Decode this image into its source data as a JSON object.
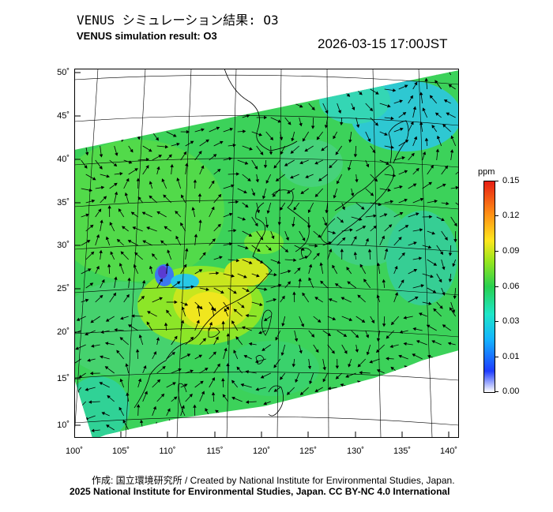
{
  "header": {
    "title_jp": "VENUS シミュレーション結果: O3",
    "title_en": "VENUS simulation result: O3",
    "timestamp": "2026-03-15 17:00JST"
  },
  "map": {
    "lat_labels": [
      "50˚",
      "45˚",
      "40˚",
      "35˚",
      "30˚",
      "25˚",
      "20˚",
      "15˚",
      "10˚"
    ],
    "lon_labels": [
      "100˚",
      "105˚",
      "110˚",
      "115˚",
      "120˚",
      "125˚",
      "130˚",
      "135˚",
      "140˚"
    ],
    "lon_range": [
      100,
      141
    ],
    "lat_range": [
      9,
      51
    ]
  },
  "colorbar": {
    "unit": "ppm",
    "ticks": [
      "0.15",
      "0.12",
      "0.09",
      "0.06",
      "0.03",
      "0.01",
      "0.00"
    ],
    "colors": [
      "#ffffff",
      "#1e3cff",
      "#14b4ff",
      "#1ee6c8",
      "#28d050",
      "#96e61e",
      "#ffe61e",
      "#ff8c14",
      "#e61e14"
    ]
  },
  "footer": {
    "credit": "作成: 国立環境研究所 / Created by National Institute for Environmental Studies, Japan.",
    "copyright": "2025 National Institute for Environmental Studies, Japan. CC BY-NC 4.0 International"
  }
}
